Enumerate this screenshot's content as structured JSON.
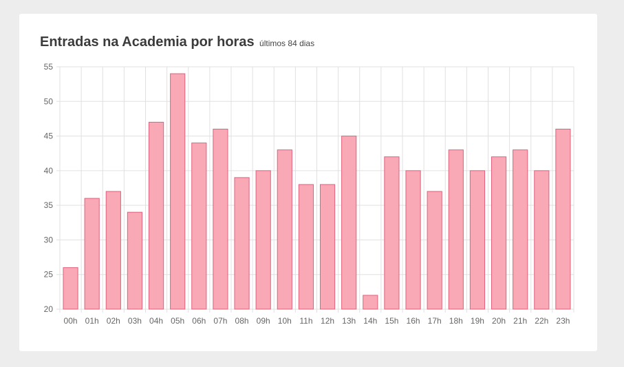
{
  "header": {
    "title": "Entradas na Academia por horas",
    "subtitle": "últimos 84 dias"
  },
  "chart_data": {
    "type": "bar",
    "title": "Entradas na Academia por horas",
    "subtitle": "últimos 84 dias",
    "xlabel": "",
    "ylabel": "",
    "categories": [
      "00h",
      "01h",
      "02h",
      "03h",
      "04h",
      "05h",
      "06h",
      "07h",
      "08h",
      "09h",
      "10h",
      "11h",
      "12h",
      "13h",
      "14h",
      "15h",
      "16h",
      "17h",
      "18h",
      "19h",
      "20h",
      "21h",
      "22h",
      "23h"
    ],
    "values": [
      26,
      36,
      37,
      34,
      47,
      54,
      44,
      46,
      39,
      40,
      43,
      38,
      38,
      45,
      22,
      42,
      40,
      37,
      43,
      40,
      42,
      43,
      40,
      46
    ],
    "ylim": [
      20,
      55
    ],
    "yticks": [
      20,
      25,
      30,
      35,
      40,
      45,
      50,
      55
    ],
    "grid": true,
    "bar_fill": "#f9a8b5",
    "bar_stroke": "#e0617b",
    "grid_color": "#e0e0e0",
    "tick_color": "#666666"
  }
}
